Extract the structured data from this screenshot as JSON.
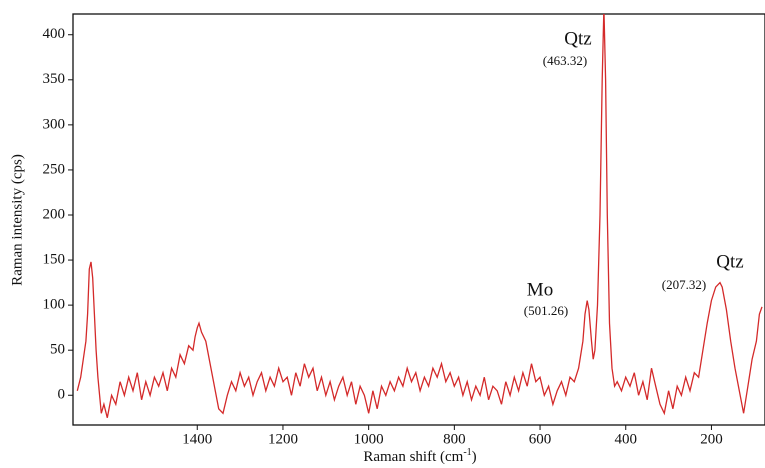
{
  "chart_data": {
    "type": "line",
    "ylabel": "Raman intensity (cps)",
    "xlabel": [
      "Raman shift (cm",
      "-1",
      ")"
    ],
    "xlim": [
      1690,
      75
    ],
    "ylim": [
      -33,
      423
    ],
    "xticks": [
      1400,
      1200,
      1000,
      800,
      600,
      400,
      200
    ],
    "yticks": [
      0,
      50,
      100,
      150,
      200,
      250,
      300,
      350,
      400
    ],
    "annotations": [
      "Qtz",
      "(463.32)",
      "Mo",
      "(501.26)",
      "Qtz",
      "(207.32)"
    ],
    "series": [
      {
        "color": "#d42a2a",
        "x": [
          1680,
          1672,
          1666,
          1660,
          1656,
          1652,
          1648,
          1644,
          1640,
          1636,
          1632,
          1628,
          1624,
          1618,
          1610,
          1600,
          1590,
          1580,
          1570,
          1560,
          1550,
          1540,
          1530,
          1520,
          1510,
          1500,
          1490,
          1480,
          1470,
          1460,
          1450,
          1440,
          1430,
          1420,
          1410,
          1405,
          1400,
          1396,
          1390,
          1380,
          1370,
          1360,
          1350,
          1340,
          1330,
          1320,
          1310,
          1300,
          1290,
          1280,
          1270,
          1260,
          1250,
          1240,
          1230,
          1220,
          1210,
          1200,
          1190,
          1180,
          1170,
          1160,
          1150,
          1140,
          1130,
          1120,
          1110,
          1100,
          1090,
          1080,
          1070,
          1060,
          1050,
          1040,
          1030,
          1020,
          1010,
          1000,
          990,
          980,
          970,
          960,
          950,
          940,
          930,
          920,
          910,
          900,
          890,
          880,
          870,
          860,
          850,
          840,
          830,
          820,
          810,
          800,
          790,
          780,
          770,
          760,
          750,
          740,
          730,
          720,
          710,
          700,
          690,
          680,
          670,
          660,
          650,
          640,
          630,
          620,
          610,
          600,
          590,
          580,
          570,
          560,
          550,
          540,
          530,
          520,
          510,
          500,
          495,
          490,
          486,
          480,
          476,
          472,
          466,
          460,
          455,
          451,
          447,
          443,
          438,
          432,
          426,
          420,
          410,
          400,
          390,
          380,
          370,
          360,
          350,
          340,
          330,
          320,
          310,
          300,
          290,
          280,
          270,
          260,
          250,
          240,
          230,
          220,
          210,
          200,
          190,
          180,
          175,
          165,
          155,
          145,
          135,
          125,
          115,
          105,
          95,
          88,
          82
        ],
        "values": [
          5,
          20,
          40,
          60,
          90,
          140,
          148,
          130,
          90,
          50,
          20,
          0,
          -20,
          -10,
          -25,
          0,
          -10,
          15,
          0,
          20,
          5,
          25,
          -5,
          15,
          0,
          20,
          10,
          25,
          5,
          30,
          20,
          45,
          35,
          55,
          50,
          65,
          75,
          80,
          70,
          60,
          35,
          10,
          -15,
          -20,
          0,
          15,
          5,
          25,
          10,
          20,
          0,
          15,
          25,
          5,
          20,
          10,
          30,
          15,
          20,
          0,
          25,
          10,
          35,
          20,
          30,
          5,
          20,
          0,
          15,
          -5,
          10,
          20,
          0,
          15,
          -10,
          10,
          0,
          -20,
          5,
          -15,
          10,
          0,
          15,
          5,
          20,
          10,
          30,
          15,
          25,
          5,
          20,
          10,
          30,
          20,
          35,
          15,
          25,
          10,
          20,
          0,
          15,
          -5,
          10,
          0,
          20,
          -5,
          10,
          5,
          -10,
          15,
          0,
          20,
          5,
          25,
          10,
          35,
          15,
          20,
          0,
          10,
          -10,
          5,
          15,
          0,
          20,
          15,
          30,
          60,
          90,
          105,
          95,
          60,
          40,
          50,
          100,
          200,
          350,
          430,
          350,
          200,
          80,
          30,
          10,
          15,
          5,
          20,
          10,
          25,
          0,
          15,
          -5,
          30,
          10,
          -10,
          -20,
          5,
          -15,
          10,
          0,
          20,
          5,
          25,
          20,
          50,
          80,
          105,
          120,
          125,
          120,
          95,
          60,
          30,
          5,
          -20,
          10,
          40,
          60,
          90,
          98
        ]
      }
    ]
  }
}
